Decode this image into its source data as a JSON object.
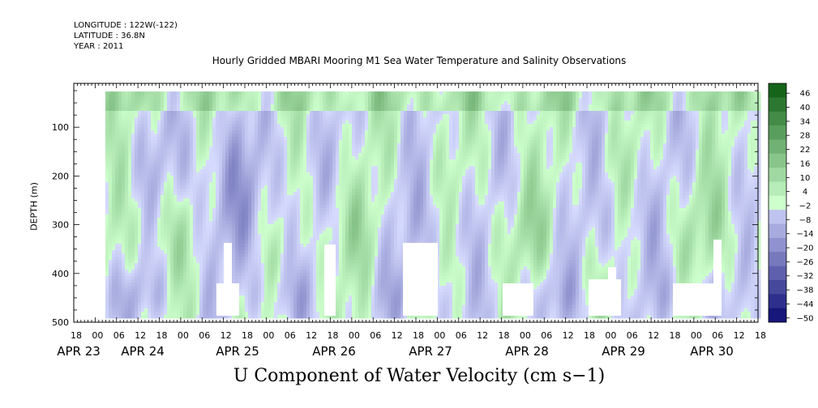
{
  "header": {
    "longitude": "LONGITUDE : 122W(-122)",
    "latitude": "LATITUDE : 36.8N",
    "year": "YEAR : 2011"
  },
  "chart_data": {
    "type": "heatmap",
    "title": "Hourly Gridded MBARI Mooring M1 Sea Water Temperature and Salinity Observations",
    "xlabel": "U Component of Water Velocity (cm s−1)",
    "ylabel": "DEPTH (m)",
    "x_hours_ticks": [
      "18",
      "00",
      "06",
      "12",
      "18",
      "00",
      "06",
      "12",
      "18",
      "00",
      "06",
      "12",
      "18",
      "00",
      "06",
      "12",
      "18",
      "00",
      "06",
      "12",
      "18",
      "00",
      "06",
      "12",
      "18",
      "00",
      "06",
      "12",
      "18",
      "00",
      "06",
      "12",
      "18"
    ],
    "x_day_labels": [
      "APR 23",
      "APR 24",
      "APR 25",
      "APR 26",
      "APR 27",
      "APR 28",
      "APR 29",
      "APR 30"
    ],
    "y_ticks": [
      "100",
      "200",
      "300",
      "400",
      "500"
    ],
    "ylim": [
      500,
      10
    ],
    "colorbar_labels": [
      "46",
      "40",
      "34",
      "28",
      "22",
      "16",
      "10",
      "4",
      "−2",
      "−8",
      "−14",
      "−20",
      "−26",
      "−32",
      "−38",
      "−44",
      "−50"
    ],
    "colorbar_range": [
      -50,
      50
    ]
  }
}
